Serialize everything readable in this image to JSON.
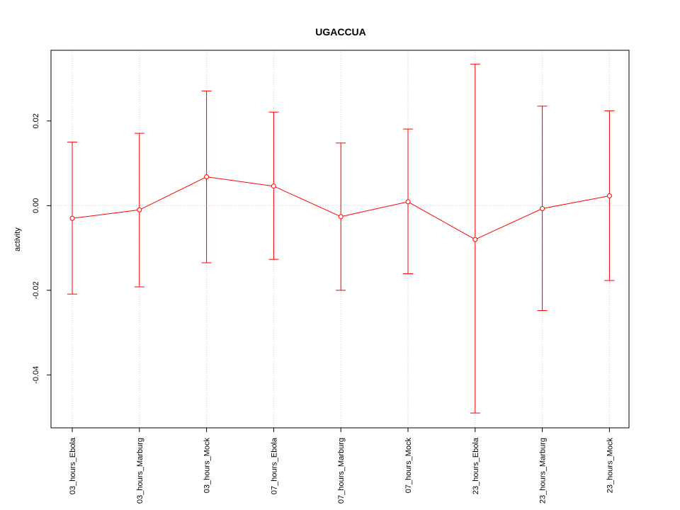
{
  "chart_data": {
    "type": "line",
    "title": "UGACCUA",
    "xlabel": "",
    "ylabel": "activity",
    "categories": [
      "03_hours_Ebola",
      "03_hours_Marburg",
      "03_hours_Mock",
      "07_hours_Ebola",
      "07_hours_Marburg",
      "07_hours_Mock",
      "23_hours_Ebola",
      "23_hours_Marburg",
      "23_hours_Mock"
    ],
    "series": [
      {
        "values": [
          -0.003,
          -0.001,
          0.0068,
          0.0046,
          -0.0026,
          0.0009,
          -0.008,
          -0.0007,
          0.0023
        ],
        "upper": [
          0.015,
          0.0171,
          0.0271,
          0.0221,
          0.0148,
          0.0181,
          0.0334,
          0.0235,
          0.0224
        ],
        "lower": [
          -0.0209,
          -0.0192,
          -0.0135,
          -0.0127,
          -0.02,
          -0.0161,
          -0.049,
          -0.0248,
          -0.0177
        ],
        "color": "#ff0000"
      }
    ],
    "yticks": [
      -0.04,
      -0.02,
      0.0,
      0.02
    ],
    "ytick_labels": [
      "-0.04",
      "-0.02",
      "0.00",
      "0.02"
    ],
    "ylim": [
      -0.0525,
      0.0367
    ],
    "grid": true,
    "grid_color": "#cccccc",
    "legend": "none"
  }
}
